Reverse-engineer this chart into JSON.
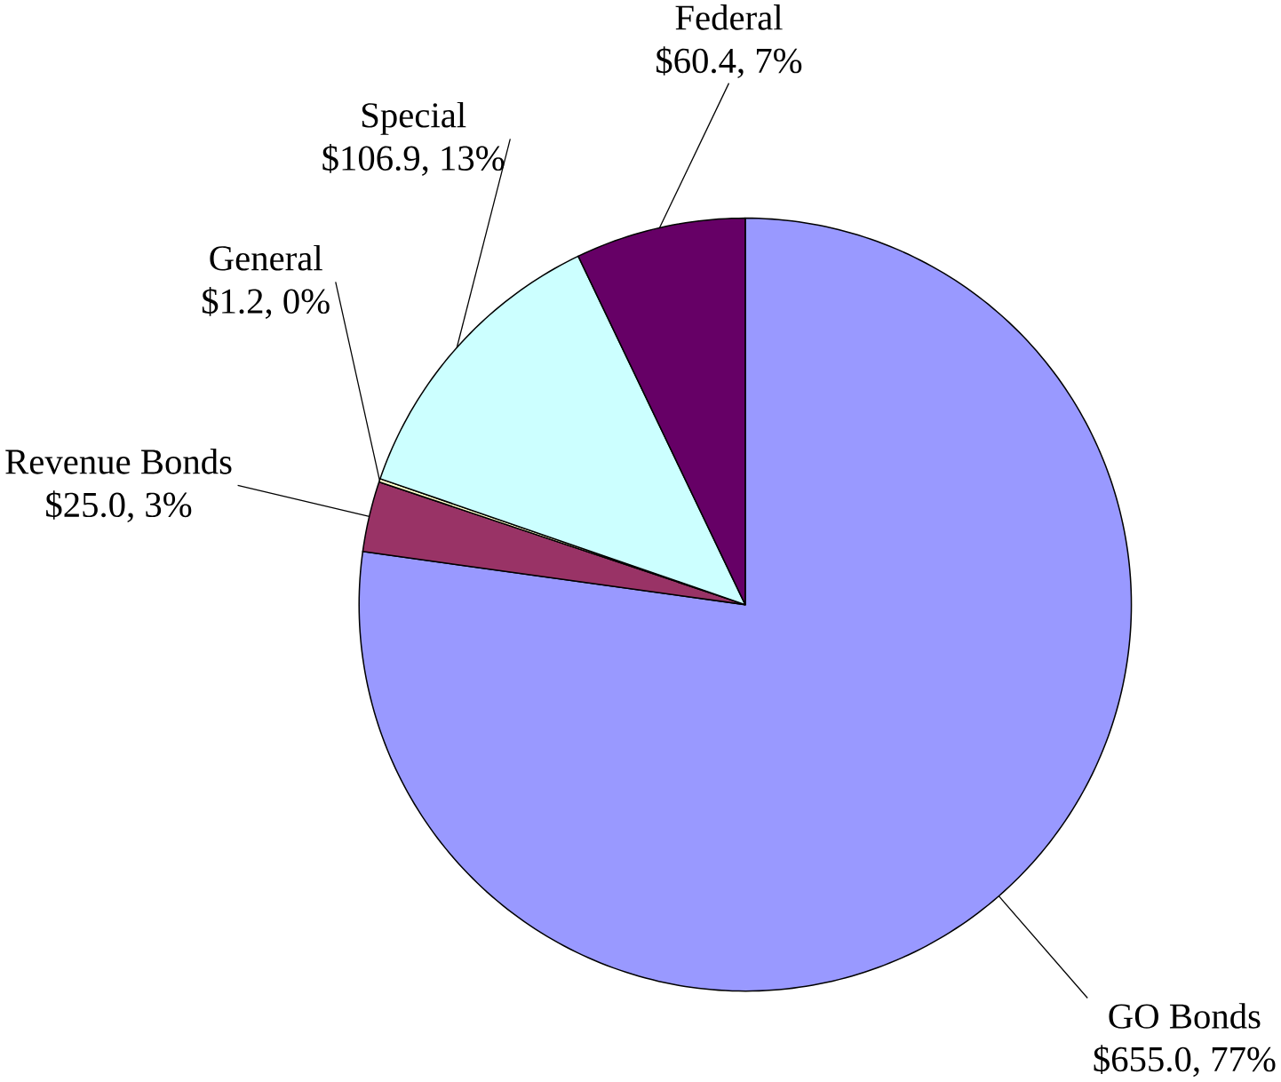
{
  "chart_data": {
    "type": "pie",
    "categories": [
      "GO Bonds",
      "Revenue Bonds",
      "General",
      "Special",
      "Federal"
    ],
    "values": [
      655.0,
      25.0,
      1.2,
      106.9,
      60.4
    ],
    "value_labels": [
      "$655.0, 77%",
      "$25.0, 3%",
      "$1.2, 0%",
      "$106.9, 13%",
      "$60.4, 7%"
    ],
    "colors": [
      "#9999ff",
      "#993366",
      "#ffffcc",
      "#ccffff",
      "#660066"
    ]
  }
}
